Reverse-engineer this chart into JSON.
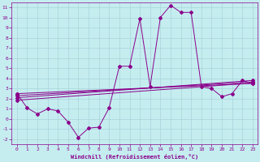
{
  "xlabel": "Windchill (Refroidissement éolien,°C)",
  "xlim": [
    -0.5,
    23.5
  ],
  "ylim": [
    -2.5,
    11.5
  ],
  "xticks": [
    0,
    1,
    2,
    3,
    4,
    5,
    6,
    7,
    8,
    9,
    10,
    11,
    12,
    13,
    14,
    15,
    16,
    17,
    18,
    19,
    20,
    21,
    22,
    23
  ],
  "yticks": [
    -2,
    -1,
    0,
    1,
    2,
    3,
    4,
    5,
    6,
    7,
    8,
    9,
    10,
    11
  ],
  "background_color": "#c5edf0",
  "grid_color": "#a8d4da",
  "line_color": "#8b008b",
  "main_x": [
    0,
    1,
    2,
    3,
    4,
    5,
    6,
    7,
    8,
    9,
    10,
    11,
    12,
    13,
    14,
    15,
    16,
    17,
    18,
    19,
    20,
    21,
    22,
    23
  ],
  "main_y": [
    2.5,
    1.1,
    0.5,
    1.0,
    0.8,
    -0.3,
    -1.8,
    -0.9,
    -0.8,
    1.1,
    5.2,
    5.2,
    9.9,
    3.2,
    10.0,
    11.2,
    10.5,
    10.5,
    3.2,
    3.0,
    2.2,
    2.5,
    3.8,
    3.5
  ],
  "trend_lines": [
    {
      "x0": 2.5,
      "x23": 3.5
    },
    {
      "x0": 2.3,
      "x23": 3.3
    },
    {
      "x0": 2.1,
      "x23": 3.6
    },
    {
      "x0": 1.9,
      "x23": 3.4
    }
  ],
  "tick_fontsize": 4.5,
  "xlabel_fontsize": 5.0
}
